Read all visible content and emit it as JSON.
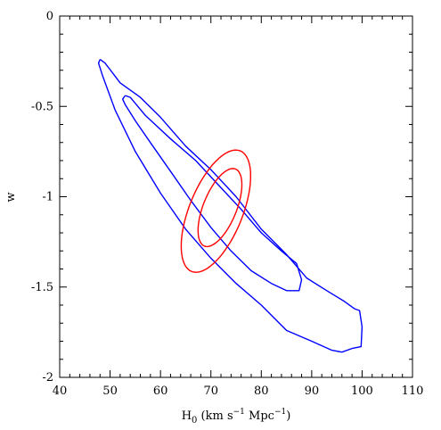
{
  "chart_data": {
    "type": "line",
    "title": "",
    "xlabel": {
      "main": "H",
      "sub": "0",
      "unit_prefix": " (km s",
      "exp1": "−1",
      "mid": " Mpc",
      "exp2": "−1",
      "unit_suffix": ")"
    },
    "ylabel": "w",
    "xlim": [
      40,
      110
    ],
    "ylim": [
      -2,
      0
    ],
    "xticks": [
      "40",
      "50",
      "60",
      "70",
      "80",
      "90",
      "100",
      "110"
    ],
    "yticks": [
      "0",
      "-0.5",
      "-1",
      "-1.5",
      "-2"
    ],
    "grid": false,
    "colors": {
      "blue": "#0000ff",
      "red": "#ff0000",
      "axis": "#000000"
    },
    "series": [
      {
        "color": "blue",
        "contour": "outer",
        "x": [
          48.0,
          49.0,
          52.0,
          56.0,
          60.0,
          65.0,
          70.0,
          75.0,
          80.0,
          85.0,
          89.0,
          93.0,
          96.5,
          98.5,
          99.5,
          100.0,
          99.8,
          98.0,
          96.0,
          94.0,
          90.0,
          85.0,
          80.0,
          75.0,
          70.0,
          65.0,
          60.0,
          55.0,
          51.0,
          48.5,
          47.7,
          48.0
        ],
        "y": [
          -0.24,
          -0.26,
          -0.37,
          -0.45,
          -0.56,
          -0.72,
          -0.85,
          -1.0,
          -1.18,
          -1.32,
          -1.45,
          -1.52,
          -1.58,
          -1.62,
          -1.63,
          -1.72,
          -1.83,
          -1.84,
          -1.86,
          -1.85,
          -1.8,
          -1.74,
          -1.6,
          -1.48,
          -1.34,
          -1.18,
          -0.98,
          -0.75,
          -0.52,
          -0.33,
          -0.26,
          -0.24
        ]
      },
      {
        "color": "blue",
        "contour": "inner",
        "x": [
          53.0,
          54.0,
          57.0,
          62.0,
          67.0,
          72.0,
          76.0,
          80.0,
          84.0,
          87.0,
          88.0,
          87.5,
          85.0,
          82.0,
          78.0,
          74.0,
          70.0,
          66.0,
          62.0,
          58.0,
          55.0,
          53.0,
          52.5,
          53.0
        ],
        "y": [
          -0.44,
          -0.45,
          -0.55,
          -0.68,
          -0.8,
          -0.95,
          -1.07,
          -1.2,
          -1.3,
          -1.37,
          -1.46,
          -1.52,
          -1.52,
          -1.48,
          -1.41,
          -1.3,
          -1.17,
          -1.02,
          -0.86,
          -0.7,
          -0.58,
          -0.49,
          -0.46,
          -0.44
        ]
      },
      {
        "color": "red",
        "contour": "outer",
        "ellipse": {
          "cx": 71.0,
          "cy": -1.08,
          "rx": 5.3,
          "ry": 0.36,
          "angle_deg": -22
        }
      },
      {
        "color": "red",
        "contour": "inner",
        "ellipse": {
          "cx": 71.8,
          "cy": -1.06,
          "rx": 3.3,
          "ry": 0.23,
          "angle_deg": -22
        }
      }
    ]
  }
}
